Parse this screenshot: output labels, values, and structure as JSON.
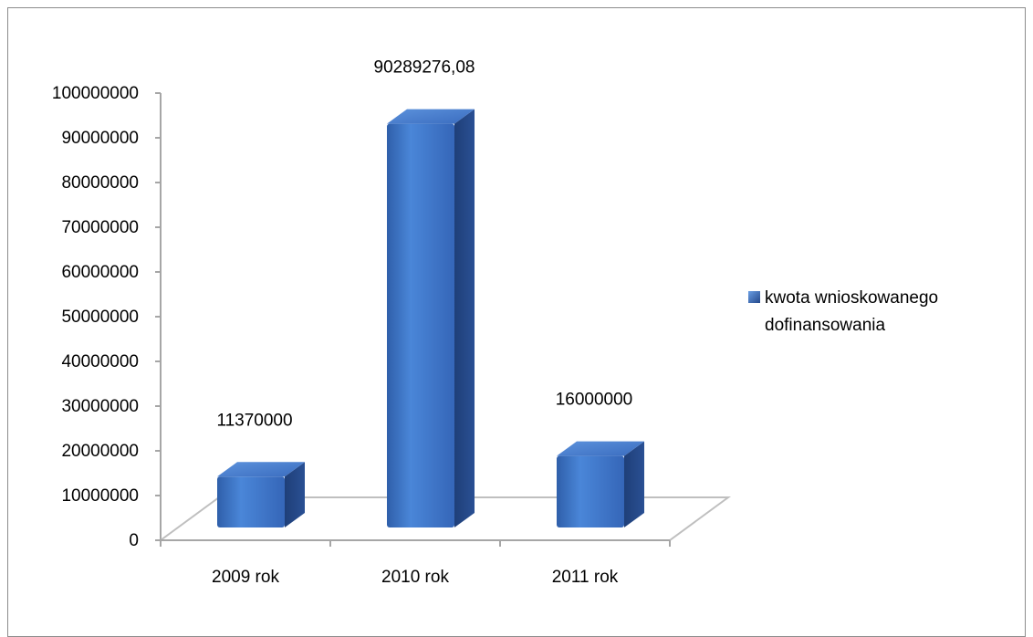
{
  "chart_data": {
    "type": "bar",
    "style": "3d-column",
    "categories": [
      "2009 rok",
      "2010 rok",
      "2011 rok"
    ],
    "series": [
      {
        "name": "kwota wnioskowanego dofinansowania",
        "values": [
          11370000,
          90289276.08,
          16000000
        ],
        "data_labels": [
          "11370000",
          "90289276,08",
          "16000000"
        ],
        "color": "#3a6fc4"
      }
    ],
    "ylim": [
      0,
      100000000
    ],
    "yticks": [
      "0",
      "10000000",
      "20000000",
      "30000000",
      "40000000",
      "50000000",
      "60000000",
      "70000000",
      "80000000",
      "90000000",
      "100000000"
    ],
    "ytick_values": [
      0,
      10000000,
      20000000,
      30000000,
      40000000,
      50000000,
      60000000,
      70000000,
      80000000,
      90000000,
      100000000
    ],
    "legend": {
      "position": "right",
      "lines": [
        "kwota wnioskowanego",
        "dofinansowania"
      ]
    },
    "grid": false
  }
}
